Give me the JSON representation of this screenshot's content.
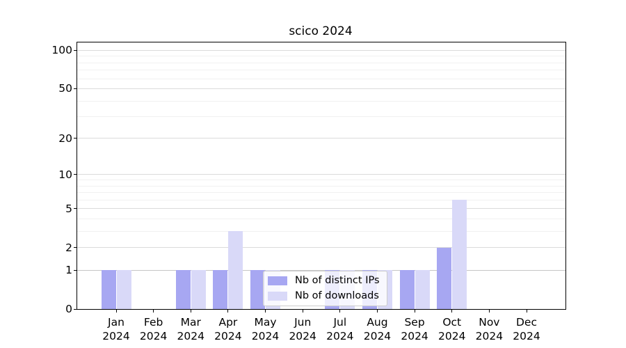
{
  "title": "scico 2024",
  "colors": {
    "ips": "#a7a7f2",
    "downloads": "#d9d9f8",
    "grid_major": "#dbdbdb",
    "grid_minor": "#f1f1f1",
    "axis": "#000000"
  },
  "legend": {
    "items": [
      {
        "label": "Nb of distinct IPs",
        "color_key": "ips"
      },
      {
        "label": "Nb of downloads",
        "color_key": "downloads"
      }
    ]
  },
  "y_axis": {
    "tick_labels": [
      0,
      1,
      2,
      5,
      10,
      20,
      50,
      100
    ],
    "minor_gridlines": [
      3,
      4,
      6,
      7,
      8,
      9,
      30,
      40,
      60,
      70,
      80,
      90
    ],
    "scale": "log1p"
  },
  "x_axis": {
    "categories": [
      {
        "month": "Jan",
        "year": "2024"
      },
      {
        "month": "Feb",
        "year": "2024"
      },
      {
        "month": "Mar",
        "year": "2024"
      },
      {
        "month": "Apr",
        "year": "2024"
      },
      {
        "month": "May",
        "year": "2024"
      },
      {
        "month": "Jun",
        "year": "2024"
      },
      {
        "month": "Jul",
        "year": "2024"
      },
      {
        "month": "Aug",
        "year": "2024"
      },
      {
        "month": "Sep",
        "year": "2024"
      },
      {
        "month": "Oct",
        "year": "2024"
      },
      {
        "month": "Nov",
        "year": "2024"
      },
      {
        "month": "Dec",
        "year": "2024"
      }
    ]
  },
  "chart_data": {
    "type": "bar",
    "title": "scico 2024",
    "xlabel": "",
    "ylabel": "",
    "categories": [
      "Jan 2024",
      "Feb 2024",
      "Mar 2024",
      "Apr 2024",
      "May 2024",
      "Jun 2024",
      "Jul 2024",
      "Aug 2024",
      "Sep 2024",
      "Oct 2024",
      "Nov 2024",
      "Dec 2024"
    ],
    "series": [
      {
        "name": "Nb of distinct IPs",
        "values": [
          1,
          0,
          1,
          1,
          1,
          0,
          1,
          1,
          1,
          2,
          0,
          0
        ]
      },
      {
        "name": "Nb of downloads",
        "values": [
          1,
          0,
          1,
          3,
          1,
          0,
          1,
          1,
          1,
          6,
          0,
          0
        ]
      }
    ],
    "y_scale": "log1p",
    "yticks": [
      0,
      1,
      2,
      5,
      10,
      20,
      50,
      100
    ],
    "ylim": [
      0,
      116
    ],
    "grid": true,
    "legend_position": "lower center-left"
  }
}
